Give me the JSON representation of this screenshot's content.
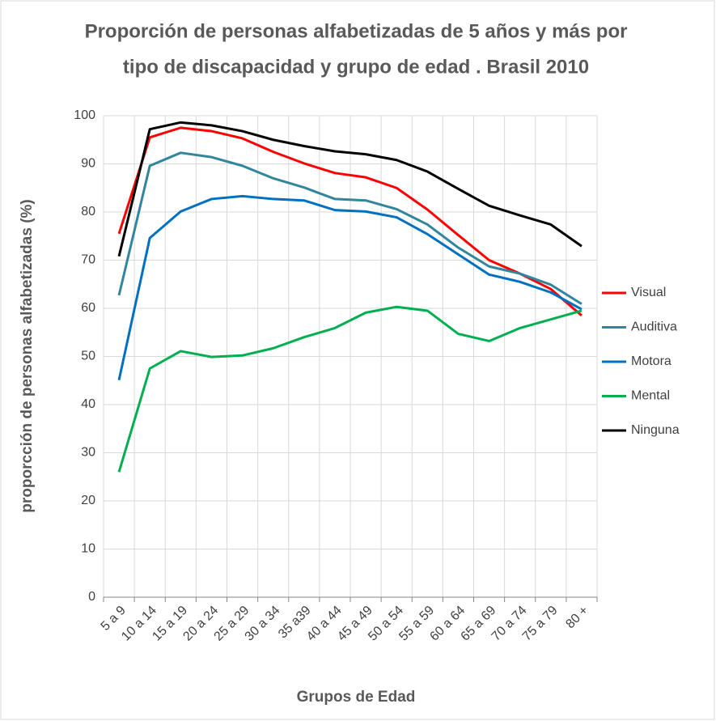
{
  "chart_data": {
    "type": "line",
    "title": [
      "Proporción de personas alfabetizadas de 5 años y más por",
      "tipo de discapacidad y grupo de edad . Brasil 2010"
    ],
    "x_label": "Grupos de Edad",
    "y_label": "proporcción de personas alfabetizadas (%)",
    "categories": [
      "5 a 9",
      "10 a 14",
      "15 a 19",
      "20 a 24",
      "25 a 29",
      "30 a 34",
      "35 a39",
      "40 a 44",
      "45 a 49",
      "50 a 54",
      "55 a 59",
      "60 a 64",
      "65 a 69",
      "70 a 74",
      "75 a 79",
      "80 +"
    ],
    "series": [
      {
        "name": "Visual",
        "color": "#ff0000",
        "values": [
          75.5,
          95.5,
          97.5,
          96.8,
          95.3,
          92.5,
          90.1,
          88.1,
          87.2,
          85.0,
          80.5,
          75.2,
          70.0,
          67.2,
          64.0,
          58.5
        ]
      },
      {
        "name": "Auditiva",
        "color": "#31859c",
        "values": [
          62.7,
          89.6,
          92.3,
          91.4,
          89.6,
          87.0,
          85.1,
          82.7,
          82.4,
          80.6,
          77.4,
          72.6,
          68.7,
          67.2,
          64.9,
          60.9
        ]
      },
      {
        "name": "Motora",
        "color": "#0070c0",
        "values": [
          45.1,
          74.6,
          80.1,
          82.7,
          83.3,
          82.7,
          82.4,
          80.4,
          80.1,
          78.9,
          75.4,
          71.2,
          67.0,
          65.5,
          63.3,
          59.8
        ]
      },
      {
        "name": "Mental",
        "color": "#00b050",
        "values": [
          26.0,
          47.5,
          51.1,
          49.9,
          50.2,
          51.7,
          54.0,
          55.9,
          59.1,
          60.3,
          59.5,
          54.7,
          53.2,
          55.9,
          57.7,
          59.5
        ]
      },
      {
        "name": "Ninguna",
        "color": "#000000",
        "values": [
          70.8,
          97.2,
          98.6,
          98.0,
          96.8,
          95.0,
          93.7,
          92.6,
          92.0,
          90.8,
          88.4,
          84.8,
          81.3,
          79.3,
          77.4,
          72.9
        ]
      }
    ],
    "ylim": [
      0,
      100
    ],
    "yticks": [
      0,
      10,
      20,
      30,
      40,
      50,
      60,
      70,
      80,
      90,
      100
    ],
    "grid": true,
    "legend": "right"
  }
}
